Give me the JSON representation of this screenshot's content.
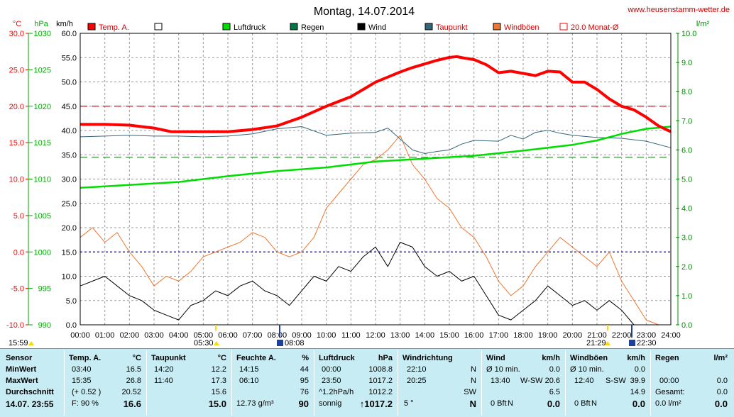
{
  "header": {
    "title": "Montag, 14.07.2014",
    "site": "www.heusenstamm-wetter.de",
    "unit_celsius": "°C",
    "unit_hpa": "hPa",
    "unit_kmh": "km/h",
    "unit_rain": "l/m²"
  },
  "legend": [
    {
      "label": "Temp. A.",
      "color": "#ff0000"
    },
    {
      "label": "",
      "color": "#ffffff"
    },
    {
      "label": "Luftdruck",
      "color": "#00dd00"
    },
    {
      "label": "Regen",
      "color": "#007744"
    },
    {
      "label": "Wind",
      "color": "#000000"
    },
    {
      "label": "Taupunkt",
      "color": "#336677"
    },
    {
      "label": "Windböen",
      "color": "#ee7733"
    },
    {
      "label": "20.0 Monat-Ø",
      "color": "#ff0000"
    }
  ],
  "chart_data": {
    "type": "line",
    "title": "Montag, 14.07.2014",
    "x_range_hours": [
      0,
      24
    ],
    "x_tick_labels": [
      "00:00",
      "01:00",
      "02:00",
      "03:00",
      "04:00",
      "05:00",
      "06:00",
      "07:00",
      "08:00",
      "09:00",
      "10:00",
      "11:00",
      "12:00",
      "13:00",
      "14:00",
      "15:00",
      "16:00",
      "17:00",
      "18:00",
      "19:00",
      "20:00",
      "21:00",
      "22:00",
      "23:00",
      "24:00"
    ],
    "axes": {
      "temp_c": {
        "label": "°C",
        "range": [
          -10,
          30
        ],
        "ticks": [
          "30.0",
          "25.0",
          "20.0",
          "15.0",
          "10.0",
          "5.0",
          "0.0",
          "-5.0",
          "-10.0"
        ],
        "color": "#ff0000"
      },
      "pressure_hpa": {
        "label": "hPa",
        "range": [
          990,
          1030
        ],
        "ticks": [
          "1030",
          "1025",
          "1020",
          "1015",
          "1010",
          "1005",
          "1000",
          "995",
          "990"
        ],
        "color": "#00aa00"
      },
      "wind_kmh": {
        "label": "km/h",
        "range": [
          0,
          60
        ],
        "ticks": [
          "60.0",
          "55.0",
          "50.0",
          "45.0",
          "40.0",
          "35.0",
          "30.0",
          "25.0",
          "20.0",
          "15.0",
          "10.0",
          "5.0",
          "0.0"
        ],
        "color": "#000000"
      },
      "rain_lm2": {
        "label": "l/m²",
        "range": [
          0,
          10
        ],
        "ticks": [
          "10.0",
          "9.0",
          "8.0",
          "7.0",
          "6.0",
          "5.0",
          "4.0",
          "3.0",
          "2.0",
          "1.0",
          "0.0"
        ],
        "color": "#008800"
      }
    },
    "reference_lines": [
      {
        "name": "20.0 Monat-Ø",
        "axis": "temp_c",
        "value": 20.0,
        "color": "#ff0000"
      },
      {
        "axis": "temp_c",
        "value": 0.0,
        "color": "#0000ff"
      },
      {
        "axis": "pressure_hpa",
        "value": 1013,
        "color": "#00cc00"
      }
    ],
    "series": [
      {
        "name": "Temp. A.",
        "axis": "temp_c",
        "color": "#ff0000",
        "x": [
          0,
          1,
          2,
          3,
          3.7,
          5,
          6,
          7,
          8,
          9,
          10,
          11,
          11.5,
          12,
          12.5,
          13,
          13.5,
          14,
          14.5,
          15,
          15.3,
          15.6,
          16,
          16.5,
          17,
          17.5,
          18,
          18.5,
          19,
          19.5,
          20,
          20.5,
          21,
          21.5,
          22,
          22.5,
          23,
          23.5,
          24
        ],
        "y": [
          17.5,
          17.5,
          17.4,
          17.0,
          16.5,
          16.5,
          16.5,
          16.8,
          17.3,
          18.5,
          20.0,
          21.3,
          22.3,
          23.3,
          24.0,
          24.7,
          25.3,
          25.8,
          26.3,
          26.7,
          26.8,
          26.6,
          26.4,
          25.7,
          24.6,
          24.8,
          24.5,
          24.2,
          24.8,
          24.7,
          23.3,
          23.3,
          22.3,
          21.0,
          20.0,
          19.5,
          18.5,
          17.3,
          16.5
        ]
      },
      {
        "name": "Taupunkt",
        "axis": "temp_c",
        "color": "#336677",
        "x": [
          0,
          1,
          2,
          3,
          4,
          5,
          6,
          7,
          8,
          9,
          10,
          11,
          12,
          12.5,
          13,
          13.5,
          14,
          14.5,
          15,
          15.5,
          16,
          17,
          17.5,
          18,
          18.5,
          19,
          19.5,
          20,
          21,
          22,
          23,
          24
        ],
        "y": [
          15.8,
          15.9,
          16.0,
          15.9,
          15.9,
          15.8,
          15.9,
          16.2,
          16.9,
          17.2,
          16.0,
          16.3,
          16.4,
          17.0,
          15.5,
          14.0,
          13.5,
          13.8,
          14.0,
          14.8,
          15.3,
          15.2,
          16.0,
          15.5,
          16.4,
          16.7,
          16.3,
          16.0,
          15.7,
          15.6,
          15.2,
          14.3
        ]
      },
      {
        "name": "Luftdruck",
        "axis": "pressure_hpa",
        "color": "#00dd00",
        "x": [
          0,
          2,
          4,
          6,
          8,
          10,
          12,
          14,
          16,
          18,
          20,
          21,
          22,
          23,
          24
        ],
        "y": [
          1008.8,
          1009.2,
          1009.6,
          1010.4,
          1011.1,
          1011.6,
          1012.4,
          1012.8,
          1013.2,
          1013.9,
          1014.7,
          1015.3,
          1016.2,
          1016.9,
          1017.2
        ]
      },
      {
        "name": "Wind",
        "axis": "wind_kmh",
        "color": "#000000",
        "x": [
          0,
          0.5,
          1,
          1.5,
          2,
          2.5,
          3,
          3.5,
          4,
          4.5,
          5,
          5.5,
          6,
          6.5,
          7,
          7.5,
          8,
          8.5,
          9,
          9.5,
          10,
          10.5,
          11,
          11.5,
          12,
          12.5,
          13,
          13.5,
          14,
          14.5,
          15,
          15.5,
          16,
          16.5,
          17,
          17.5,
          18,
          18.5,
          19,
          19.5,
          20,
          20.5,
          21,
          21.5,
          22,
          22.5,
          23,
          23.5,
          24
        ],
        "y": [
          8,
          9,
          10,
          8,
          6,
          5,
          3,
          2,
          1,
          4,
          5,
          7,
          6,
          8,
          9,
          7,
          6,
          4,
          7,
          10,
          9,
          12,
          11,
          14,
          16,
          12,
          17,
          16,
          12,
          10,
          11,
          9,
          10,
          6,
          2,
          1,
          3,
          5,
          8,
          6,
          4,
          5,
          3,
          5,
          3,
          0,
          0,
          0,
          0
        ]
      },
      {
        "name": "Windböen",
        "axis": "wind_kmh",
        "color": "#ee7733",
        "x": [
          0,
          0.5,
          1,
          1.5,
          2,
          2.5,
          3,
          3.5,
          4,
          4.5,
          5,
          5.5,
          6,
          6.5,
          7,
          7.5,
          8,
          8.5,
          9,
          9.5,
          10,
          10.5,
          11,
          11.5,
          12,
          12.5,
          13,
          13.5,
          14,
          14.5,
          15,
          15.5,
          16,
          16.5,
          17,
          17.5,
          18,
          18.5,
          19,
          19.5,
          20,
          20.5,
          21,
          21.5,
          22,
          22.5,
          23,
          23.5,
          24
        ],
        "y": [
          18,
          20,
          17,
          19,
          15,
          12,
          8,
          10,
          9,
          11,
          14,
          15,
          16,
          17,
          19,
          18,
          15,
          14,
          15,
          18,
          24,
          27,
          30,
          33,
          34,
          36,
          39,
          33,
          30,
          26,
          24,
          20,
          18,
          14,
          9,
          6,
          8,
          12,
          15,
          18,
          16,
          14,
          12,
          15,
          9,
          5,
          1,
          0,
          0
        ]
      }
    ]
  },
  "time_markers": {
    "left_time": "15:59",
    "sunrise": "05:30",
    "marker1": "08:08",
    "sunset": "21:29",
    "marker2": "22:30"
  },
  "table": {
    "sensor": {
      "title": "Sensor",
      "rows": [
        "MinWert",
        "MaxWert",
        "Durchschnitt",
        "14.07. 23:55"
      ]
    },
    "temp": {
      "title": "Temp. A.",
      "unit": "°C",
      "rows": [
        [
          "03:40",
          "16.5"
        ],
        [
          "15:35",
          "26.8"
        ],
        [
          "(+ 0.52 )",
          "20.52"
        ],
        [
          "F: 90 %",
          "16.6"
        ]
      ]
    },
    "taupunkt": {
      "title": "Taupunkt",
      "unit": "°C",
      "rows": [
        [
          "14:20",
          "12.2"
        ],
        [
          "11:40",
          "17.3"
        ],
        [
          "",
          "15.6"
        ],
        [
          "",
          "15.0"
        ]
      ]
    },
    "feuchte": {
      "title": "Feuchte A.",
      "unit": "%",
      "rows": [
        [
          "14:15",
          "44"
        ],
        [
          "06:10",
          "95"
        ],
        [
          "",
          "76"
        ],
        [
          "12.73 g/m³",
          "90"
        ]
      ]
    },
    "luftdruck": {
      "title": "Luftdruck",
      "unit": "hPa",
      "rows": [
        [
          "00:00",
          "1008.8"
        ],
        [
          "23:50",
          "1017.2"
        ],
        [
          "^1.2hPa/h",
          "1012.2"
        ],
        [
          "sonnig",
          "↑1017.2"
        ]
      ]
    },
    "windrichtung": {
      "title": "Windrichtung",
      "rows": [
        [
          "22:10",
          "N"
        ],
        [
          "20:25",
          "N"
        ],
        [
          "",
          "SW"
        ],
        [
          "5 °",
          "N"
        ]
      ]
    },
    "wind": {
      "title": "Wind",
      "unit": "km/h",
      "rows": [
        [
          "Ø 10 min.",
          "",
          "0.0"
        ],
        [
          "13:40",
          "W-SW",
          "20.6"
        ],
        [
          "",
          "",
          "6.5"
        ],
        [
          "0 Bft",
          "N",
          "0.0"
        ]
      ]
    },
    "windboeen": {
      "title": "Windböen",
      "unit": "km/h",
      "rows": [
        [
          "Ø 10 min.",
          "",
          "0.0"
        ],
        [
          "12:40",
          "S-SW",
          "39.9"
        ],
        [
          "",
          "",
          "14.9"
        ],
        [
          "0 Bft",
          "N",
          "0.0"
        ]
      ]
    },
    "regen": {
      "title": "Regen",
      "unit": "l/m²",
      "rows": [
        [
          "",
          "",
          ""
        ],
        [
          "00:00",
          "",
          "0.0"
        ],
        [
          "Gesamt:",
          "",
          "0.0"
        ],
        [
          "0.0 l/m²",
          "",
          "0.0"
        ]
      ]
    }
  }
}
